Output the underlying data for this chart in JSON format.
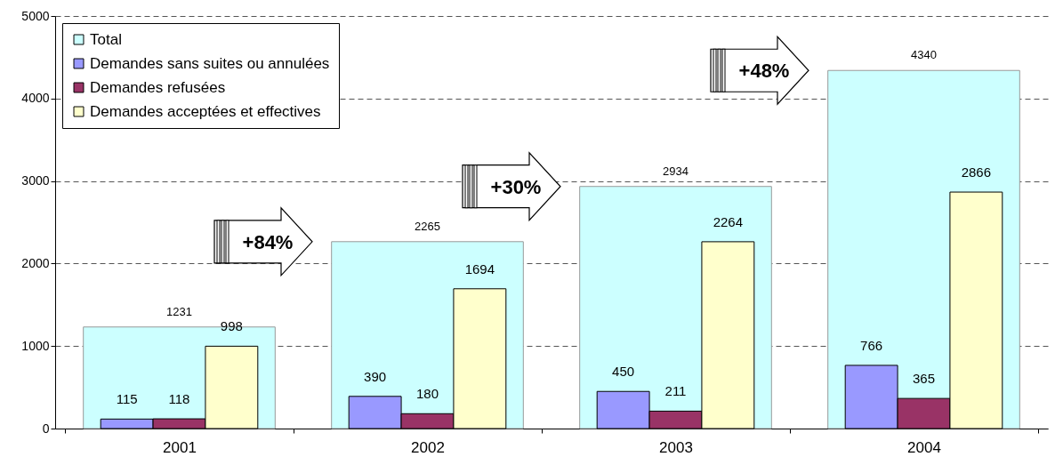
{
  "chart_data": {
    "type": "bar",
    "categories": [
      "2001",
      "2002",
      "2003",
      "2004"
    ],
    "series": [
      {
        "name": "Total",
        "color": "#ccffff",
        "values": [
          1231,
          2265,
          2934,
          4340
        ]
      },
      {
        "name": "Demandes sans suites ou annulées",
        "color": "#9999ff",
        "values": [
          115,
          390,
          450,
          766
        ]
      },
      {
        "name": "Demandes refusées",
        "color": "#993366",
        "values": [
          118,
          180,
          211,
          365
        ]
      },
      {
        "name": "Demandes acceptées et effectives",
        "color": "#ffffcc",
        "values": [
          998,
          1694,
          2264,
          2866
        ]
      }
    ],
    "ylim": [
      0,
      5000
    ],
    "yticks": [
      0,
      1000,
      2000,
      3000,
      4000,
      5000
    ],
    "grid": "y",
    "legend": "top left",
    "data_labels": true,
    "annotations": [
      "+84%",
      "+30%",
      "+48%"
    ]
  }
}
